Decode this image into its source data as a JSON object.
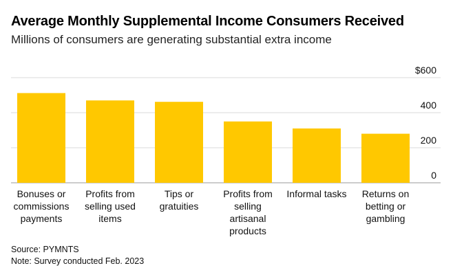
{
  "header": {
    "title": "Average Monthly Supplemental Income Consumers Received",
    "subtitle": "Millions of consumers are generating substantial extra income"
  },
  "chart_data": {
    "type": "bar",
    "categories": [
      "Bonuses or commissions payments",
      "Profits from selling used items",
      "Tips or gratuities",
      "Profits from selling artisanal products",
      "Informal tasks",
      "Returns on betting or gambling"
    ],
    "values": [
      512,
      470,
      462,
      350,
      310,
      280
    ],
    "ylim": [
      0,
      600
    ],
    "yticks": [
      {
        "value": 0,
        "label": "0"
      },
      {
        "value": 200,
        "label": "200"
      },
      {
        "value": 400,
        "label": "400"
      },
      {
        "value": 600,
        "label": "$600"
      }
    ],
    "grid": true,
    "bar_color": "#ffc800",
    "grid_color": "#d9d9d9"
  },
  "footer": {
    "source": "Source: PYMNTS",
    "note": "Note: Survey conducted Feb. 2023"
  }
}
